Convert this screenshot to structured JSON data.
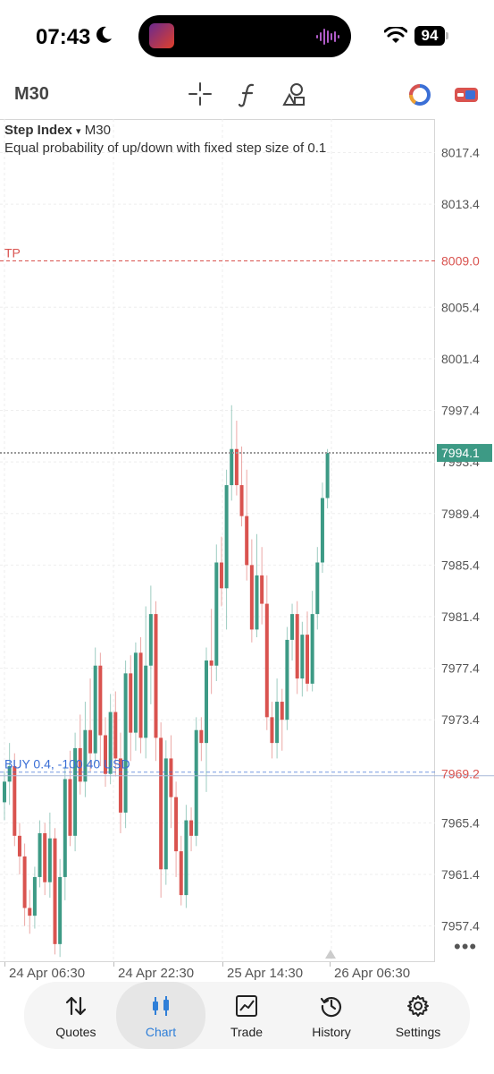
{
  "status": {
    "time": "07:43",
    "battery": "94"
  },
  "toolbar": {
    "timeframe": "M30"
  },
  "chart": {
    "symbol": "Step Index",
    "symbol_caret": "▾",
    "timeframe": "M30",
    "description": "Equal probability of up/down with fixed step size of 0.1",
    "tp_label": "TP",
    "tp_price": "8009.0",
    "current_price": "7994.1",
    "position_label": "BUY 0.4, -100.40 USD",
    "position_price": "7969.2",
    "price_ticks": [
      "8017.4",
      "8013.4",
      "8005.4",
      "8001.4",
      "7997.4",
      "7993.4",
      "7989.4",
      "7985.4",
      "7981.4",
      "7977.4",
      "7973.4",
      "7965.4",
      "7961.4",
      "7957.4"
    ],
    "time_labels": [
      "24 Apr 06:30",
      "24 Apr 22:30",
      "25 Apr 14:30",
      "26 Apr 06:30"
    ],
    "colors": {
      "bull": "#3d9a85",
      "bear": "#d9534f",
      "tp": "#d9534f",
      "position": "#3b6fd6",
      "current": "#3d9a85"
    }
  },
  "chart_data": {
    "type": "candlestick",
    "symbol": "Step Index",
    "timeframe": "M30",
    "ylim": [
      7954.6,
      8020.0
    ],
    "y_ticks": [
      8017.4,
      8013.4,
      8005.4,
      8001.4,
      7997.4,
      7993.4,
      7989.4,
      7985.4,
      7981.4,
      7977.4,
      7973.4,
      7965.4,
      7961.4,
      7957.4
    ],
    "x_ticks": [
      "24 Apr 06:30",
      "24 Apr 22:30",
      "25 Apr 14:30",
      "26 Apr 06:30"
    ],
    "levels": {
      "take_profit": 8009.0,
      "current": 7994.1,
      "position_entry": 7969.2
    },
    "candles": [
      [
        7967,
        7968.6,
        7965.6,
        7969.4
      ],
      [
        7968.6,
        7969.8,
        7966.8,
        7971.6
      ],
      [
        7969.8,
        7964.4,
        7963.6,
        7970.8
      ],
      [
        7964.4,
        7962.8,
        7961.4,
        7965.4
      ],
      [
        7962.8,
        7958.8,
        7957.4,
        7963.8
      ],
      [
        7958.8,
        7958.2,
        7956.8,
        7960.2
      ],
      [
        7958.2,
        7961.2,
        7957.2,
        7962.0
      ],
      [
        7961.2,
        7964.6,
        7960.4,
        7965.6
      ],
      [
        7964.6,
        7960.8,
        7959.8,
        7965.4
      ],
      [
        7960.8,
        7964.2,
        7959.6,
        7966.2
      ],
      [
        7964.2,
        7956.0,
        7955.2,
        7965.0
      ],
      [
        7956.0,
        7961.2,
        7955.0,
        7962.6
      ],
      [
        7961.2,
        7968.8,
        7959.4,
        7969.8
      ],
      [
        7968.8,
        7964.4,
        7963.6,
        7971.0
      ],
      [
        7964.4,
        7971.2,
        7963.2,
        7972.4
      ],
      [
        7971.2,
        7968.6,
        7967.6,
        7973.8
      ],
      [
        7968.6,
        7972.6,
        7967.4,
        7974.8
      ],
      [
        7972.6,
        7970.8,
        7969.4,
        7976.6
      ],
      [
        7970.8,
        7977.6,
        7970.0,
        7979.0
      ],
      [
        7977.6,
        7972.2,
        7969.8,
        7978.6
      ],
      [
        7972.2,
        7969.2,
        7968.2,
        7973.6
      ],
      [
        7969.2,
        7974.0,
        7968.4,
        7975.4
      ],
      [
        7974.0,
        7970.4,
        7969.0,
        7975.6
      ],
      [
        7970.4,
        7966.2,
        7964.6,
        7972.4
      ],
      [
        7966.2,
        7977.0,
        7965.0,
        7978.0
      ],
      [
        7977.0,
        7972.4,
        7970.2,
        7978.4
      ],
      [
        7972.4,
        7978.6,
        7971.0,
        7979.4
      ],
      [
        7978.6,
        7972.0,
        7970.8,
        7979.8
      ],
      [
        7972.0,
        7977.6,
        7970.4,
        7982.2
      ],
      [
        7977.6,
        7981.6,
        7974.6,
        7983.8
      ],
      [
        7981.6,
        7972.0,
        7970.2,
        7982.6
      ],
      [
        7972.0,
        7961.8,
        7959.6,
        7973.2
      ],
      [
        7961.8,
        7970.4,
        7960.6,
        7971.8
      ],
      [
        7970.4,
        7967.4,
        7965.0,
        7972.2
      ],
      [
        7967.4,
        7963.2,
        7961.2,
        7968.6
      ],
      [
        7963.2,
        7959.8,
        7959.0,
        7964.4
      ],
      [
        7959.8,
        7965.6,
        7958.8,
        7966.8
      ],
      [
        7965.6,
        7964.4,
        7963.2,
        7966.6
      ],
      [
        7964.4,
        7972.6,
        7963.6,
        7973.6
      ],
      [
        7972.6,
        7971.6,
        7970.2,
        7973.6
      ],
      [
        7971.6,
        7978.0,
        7967.8,
        7979.0
      ],
      [
        7978.0,
        7977.6,
        7975.4,
        7982.0
      ],
      [
        7977.6,
        7985.6,
        7976.4,
        7987.0
      ],
      [
        7985.6,
        7983.6,
        7982.2,
        7987.6
      ],
      [
        7983.6,
        7991.6,
        7980.4,
        7992.8
      ],
      [
        7991.6,
        7994.4,
        7990.4,
        7997.8
      ],
      [
        7994.4,
        7991.6,
        7990.8,
        7996.6
      ],
      [
        7991.6,
        7989.2,
        7988.4,
        7994.6
      ],
      [
        7989.2,
        7985.4,
        7984.2,
        7992.8
      ],
      [
        7985.4,
        7980.4,
        7979.4,
        7987.4
      ],
      [
        7980.4,
        7984.6,
        7979.8,
        7987.8
      ],
      [
        7984.6,
        7982.4,
        7980.8,
        7986.8
      ],
      [
        7982.4,
        7973.6,
        7972.6,
        7984.6
      ],
      [
        7973.6,
        7971.6,
        7970.4,
        7974.8
      ],
      [
        7971.6,
        7974.8,
        7970.4,
        7976.6
      ],
      [
        7974.8,
        7973.4,
        7971.0,
        7975.8
      ],
      [
        7973.4,
        7979.6,
        7972.6,
        7980.6
      ],
      [
        7979.6,
        7981.6,
        7978.0,
        7982.4
      ],
      [
        7981.6,
        7976.6,
        7975.4,
        7982.6
      ],
      [
        7976.6,
        7980.0,
        7975.2,
        7981.0
      ],
      [
        7980.0,
        7976.2,
        7975.6,
        7981.8
      ],
      [
        7976.2,
        7981.6,
        7975.6,
        7983.4
      ],
      [
        7981.6,
        7985.6,
        7980.4,
        7986.8
      ],
      [
        7985.6,
        7990.6,
        7984.8,
        7991.8
      ],
      [
        7990.6,
        7994.1,
        7989.8,
        7994.4
      ]
    ]
  },
  "nav": {
    "items": [
      {
        "label": "Quotes",
        "icon": "quotes-icon"
      },
      {
        "label": "Chart",
        "icon": "chart-icon"
      },
      {
        "label": "Trade",
        "icon": "trade-icon"
      },
      {
        "label": "History",
        "icon": "history-icon"
      },
      {
        "label": "Settings",
        "icon": "settings-icon"
      }
    ],
    "active": "Chart"
  }
}
